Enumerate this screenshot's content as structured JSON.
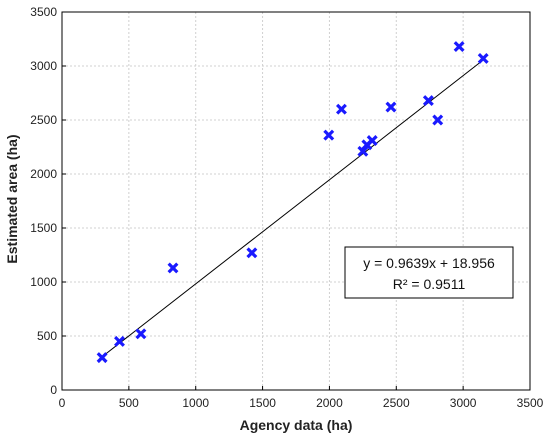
{
  "chart_data": {
    "type": "scatter",
    "xlabel": "Agency data (ha)",
    "ylabel": "Estimated area (ha)",
    "xlim": [
      0,
      3500
    ],
    "ylim": [
      0,
      3500
    ],
    "xticks": [
      0,
      500,
      1000,
      1500,
      2000,
      2500,
      3000,
      3500
    ],
    "yticks": [
      0,
      500,
      1000,
      1500,
      2000,
      2500,
      3000,
      3500
    ],
    "grid": true,
    "marker": "x-cross",
    "marker_color": "#1a1aff",
    "points": [
      {
        "x": 300,
        "y": 300
      },
      {
        "x": 430,
        "y": 450
      },
      {
        "x": 590,
        "y": 520
      },
      {
        "x": 830,
        "y": 1130
      },
      {
        "x": 1420,
        "y": 1270
      },
      {
        "x": 1995,
        "y": 2360
      },
      {
        "x": 2090,
        "y": 2600
      },
      {
        "x": 2250,
        "y": 2210
      },
      {
        "x": 2280,
        "y": 2270
      },
      {
        "x": 2320,
        "y": 2310
      },
      {
        "x": 2460,
        "y": 2620
      },
      {
        "x": 2740,
        "y": 2680
      },
      {
        "x": 2810,
        "y": 2500
      },
      {
        "x": 2970,
        "y": 3180
      },
      {
        "x": 3150,
        "y": 3070
      }
    ],
    "trendline": {
      "slope": 0.9639,
      "intercept": 18.956,
      "x_range": [
        300,
        3150
      ],
      "color": "#000000"
    },
    "annotation": {
      "equation": "y = 0.9639x + 18.956",
      "r_squared": "R² = 0.9511"
    }
  }
}
